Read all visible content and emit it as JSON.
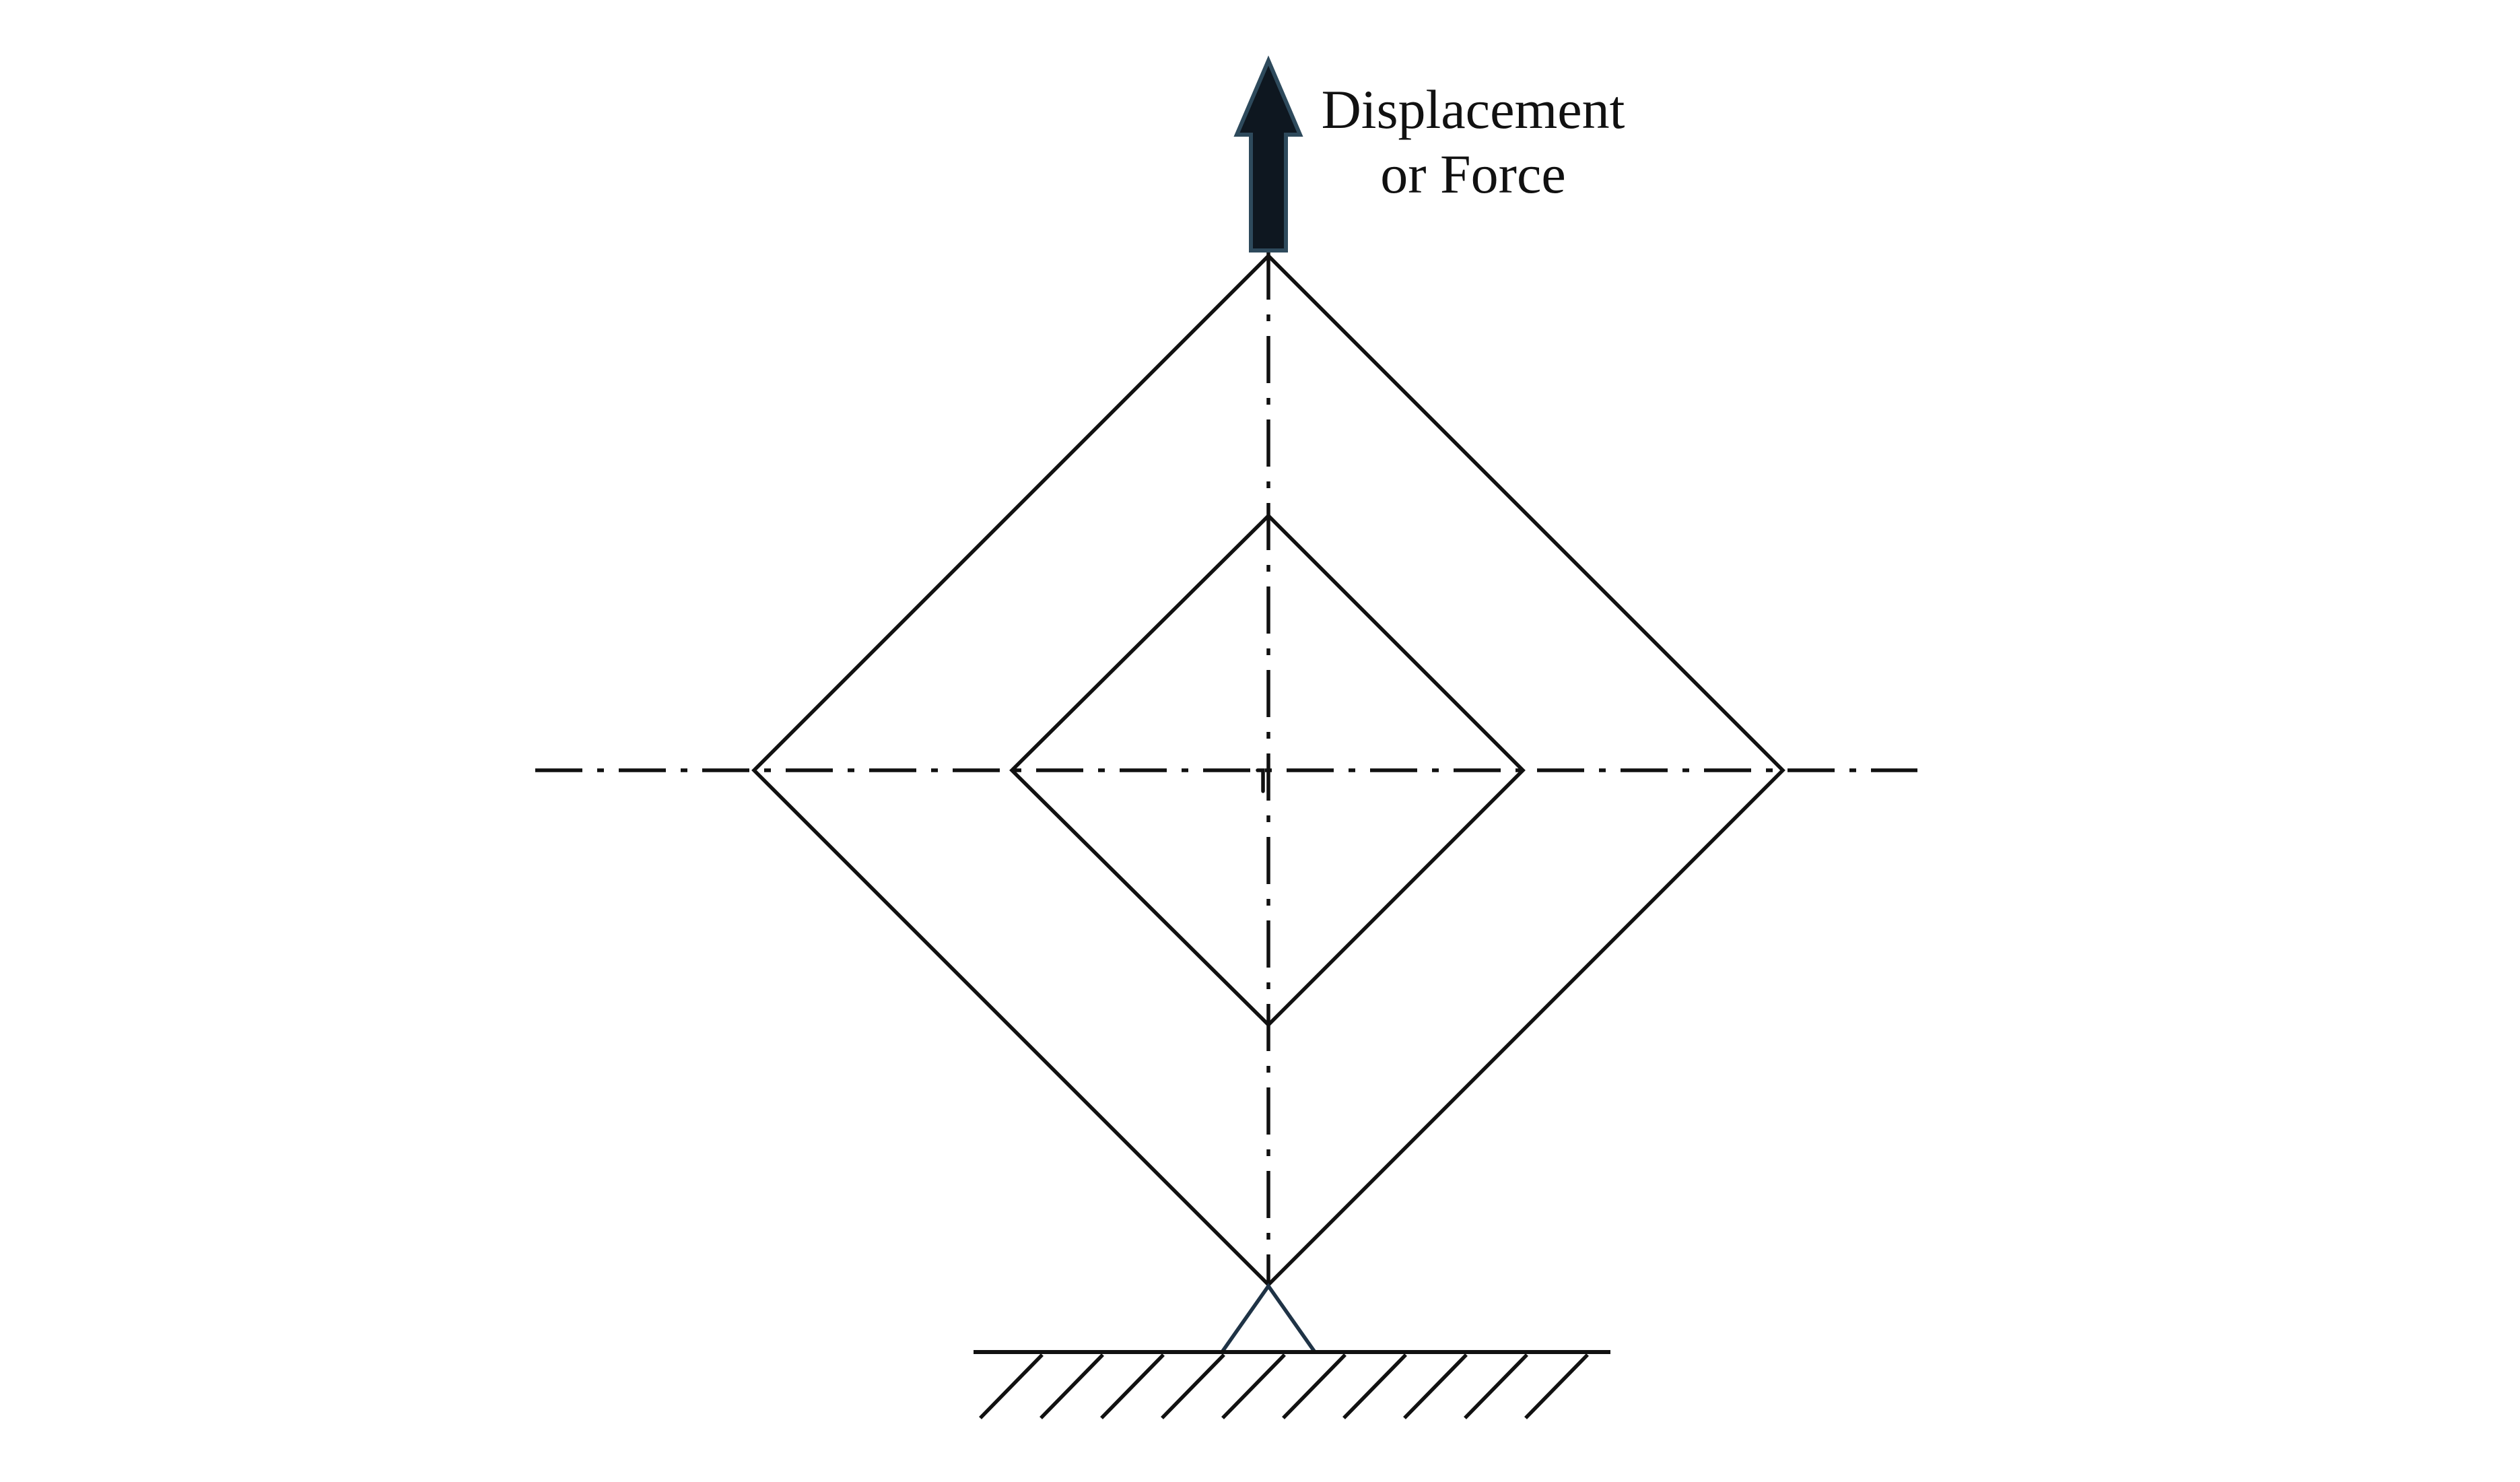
{
  "diagram": {
    "label_line1": "Displacement",
    "label_line2": "or Force",
    "colors": {
      "line": "#111111",
      "arrow_fill": "#0e1720",
      "arrow_stroke": "#2e4a5c",
      "support": "#1f3346",
      "background": "#ffffff"
    }
  }
}
